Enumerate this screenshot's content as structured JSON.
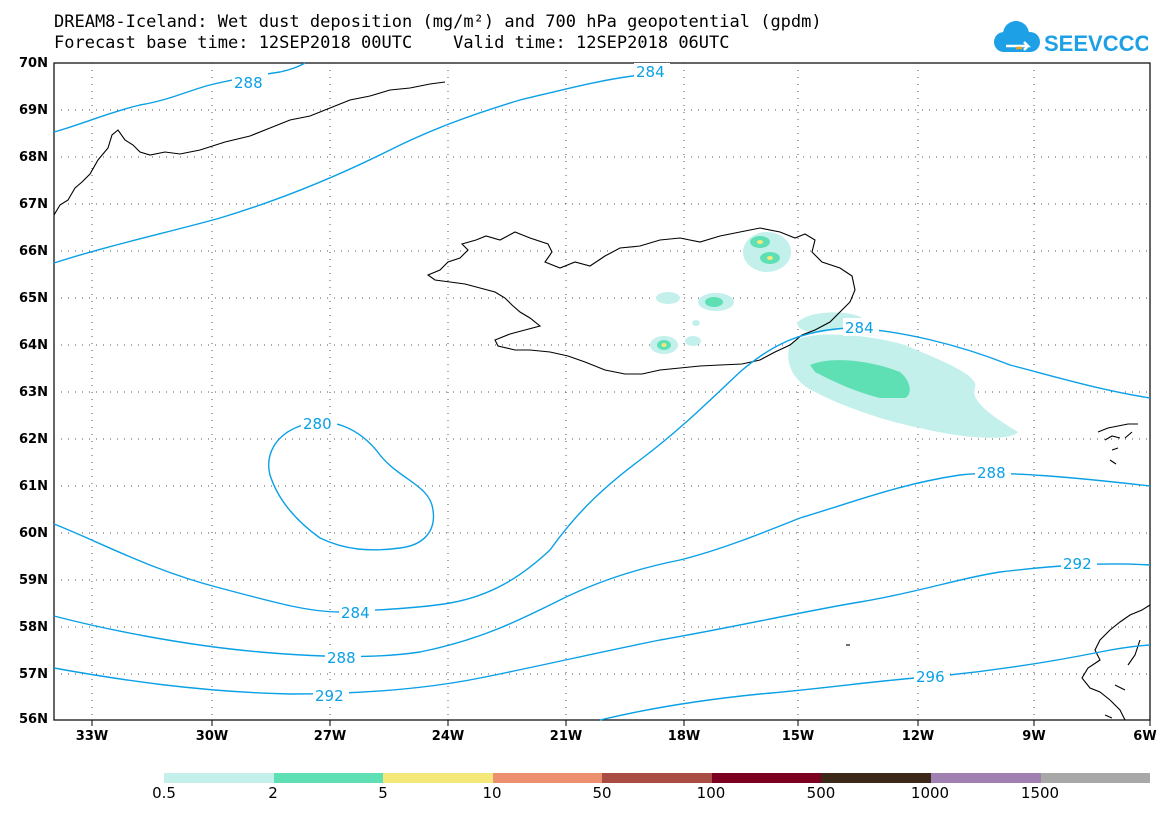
{
  "title": {
    "line1": "DREAM8-Iceland: Wet dust deposition (mg/m²) and 700 hPa geopotential (gpdm)",
    "line2": "Forecast base time: 12SEP2018 00UTC    Valid time: 12SEP2018 06UTC"
  },
  "logo": {
    "text": "SEEVCCC",
    "icon": "cloud-icon",
    "color": "#1ea0e6"
  },
  "colors": {
    "contour": "#0aa0e6",
    "coast": "#000000"
  },
  "axes": {
    "lat_labels": [
      "70N",
      "69N",
      "68N",
      "67N",
      "66N",
      "65N",
      "64N",
      "63N",
      "62N",
      "61N",
      "60N",
      "59N",
      "58N",
      "57N",
      "56N"
    ],
    "lon_labels": [
      "33W",
      "30W",
      "27W",
      "24W",
      "21W",
      "18W",
      "15W",
      "12W",
      "9W",
      "6W"
    ]
  },
  "contour_labels": [
    "288",
    "284",
    "280",
    "284",
    "288",
    "292",
    "284",
    "288",
    "292",
    "296"
  ],
  "colorbar": {
    "colors": [
      "#c4f0ec",
      "#5ee0b4",
      "#f4e878",
      "#ec9070",
      "#a84c44",
      "#7c0020",
      "#3c2818",
      "#a080b0",
      "#a8a8a8"
    ],
    "labels": [
      "0.5",
      "2",
      "5",
      "10",
      "50",
      "100",
      "500",
      "1000",
      "1500"
    ]
  }
}
